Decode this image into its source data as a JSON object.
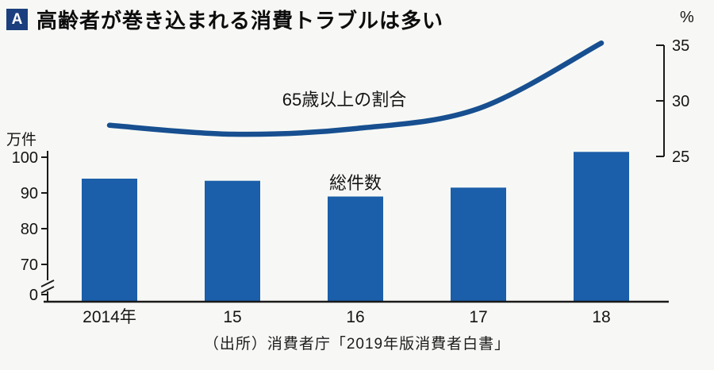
{
  "header": {
    "badge": "A",
    "title": "高齢者が巻き込まれる消費トラブルは多い"
  },
  "colors": {
    "bar": "#1b5ea9",
    "line": "#174f90",
    "badge_bg": "#1b3f7e",
    "badge_fg": "#ffffff",
    "axis": "#1a1a1a",
    "text": "#141414",
    "background": "#f7f8f5"
  },
  "chart_data": {
    "type": "bar+line combo",
    "categories": [
      "2014年",
      "15",
      "16",
      "17",
      "18"
    ],
    "series": [
      {
        "name": "総件数",
        "type": "bar",
        "axis": "left",
        "unit": "万件",
        "values": [
          94,
          93.4,
          89,
          91.5,
          101.5
        ]
      },
      {
        "name": "65歳以上の割合",
        "type": "line",
        "axis": "right",
        "unit": "%",
        "values": [
          27.8,
          27.0,
          27.5,
          29.3,
          35.2
        ]
      }
    ],
    "left_axis": {
      "label": "万件",
      "ticks": [
        0,
        70,
        80,
        90,
        100
      ],
      "axis_break": true
    },
    "right_axis": {
      "label": "%",
      "ticks": [
        25,
        30,
        35
      ],
      "range": [
        25,
        35
      ]
    },
    "grid": false,
    "legend": "inline labels next to each series"
  },
  "source": "（出所）消費者庁「2019年版消費者白書」"
}
